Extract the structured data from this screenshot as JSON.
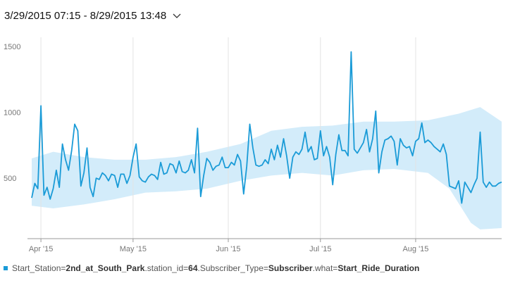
{
  "range_selector": {
    "label": "3/29/2015 07:15 - 8/29/2015 13:48"
  },
  "legend": {
    "p1": "Start_Station=",
    "station": "2nd_at_South_Park",
    "p2": ".station_id=",
    "station_id": "64",
    "p3": ".Subscriber_Type=",
    "subscriber_type": "Subscriber",
    "p4": ".what=",
    "what": "Start_Ride_Duration",
    "color": "#1a9bd7"
  },
  "chart_data": {
    "type": "line",
    "title": "",
    "xlabel": "",
    "ylabel": "",
    "x_start": "2015-03-29",
    "x_end": "2015-08-29",
    "ylim": [
      40,
      1560
    ],
    "y_ticks": [
      500,
      1000,
      1500
    ],
    "x_ticks": [
      {
        "date": "2015-04-01",
        "label": "Apr '15"
      },
      {
        "date": "2015-05-01",
        "label": "May '15"
      },
      {
        "date": "2015-06-01",
        "label": "Jun '15"
      },
      {
        "date": "2015-07-01",
        "label": "Jul '15"
      },
      {
        "date": "2015-08-01",
        "label": "Aug '15"
      }
    ],
    "grid": "vertical",
    "band_color": "#d3ecfa",
    "line_color": "#1a9bd7",
    "series": [
      {
        "values": [
          [
            "2015-03-29",
            350
          ],
          [
            "2015-03-30",
            460
          ],
          [
            "2015-03-31",
            420
          ],
          [
            "2015-04-01",
            1050
          ],
          [
            "2015-04-02",
            370
          ],
          [
            "2015-04-03",
            430
          ],
          [
            "2015-04-04",
            340
          ],
          [
            "2015-04-05",
            420
          ],
          [
            "2015-04-06",
            560
          ],
          [
            "2015-04-07",
            430
          ],
          [
            "2015-04-08",
            760
          ],
          [
            "2015-04-09",
            640
          ],
          [
            "2015-04-10",
            560
          ],
          [
            "2015-04-11",
            710
          ],
          [
            "2015-04-12",
            910
          ],
          [
            "2015-04-13",
            860
          ],
          [
            "2015-04-14",
            440
          ],
          [
            "2015-04-15",
            540
          ],
          [
            "2015-04-16",
            730
          ],
          [
            "2015-04-17",
            430
          ],
          [
            "2015-04-18",
            360
          ],
          [
            "2015-04-19",
            500
          ],
          [
            "2015-04-20",
            490
          ],
          [
            "2015-04-21",
            540
          ],
          [
            "2015-04-22",
            520
          ],
          [
            "2015-04-23",
            480
          ],
          [
            "2015-04-24",
            530
          ],
          [
            "2015-04-25",
            520
          ],
          [
            "2015-04-26",
            430
          ],
          [
            "2015-04-27",
            530
          ],
          [
            "2015-04-28",
            530
          ],
          [
            "2015-04-29",
            460
          ],
          [
            "2015-04-30",
            520
          ],
          [
            "2015-05-01",
            660
          ],
          [
            "2015-05-02",
            760
          ],
          [
            "2015-05-03",
            510
          ],
          [
            "2015-05-04",
            480
          ],
          [
            "2015-05-05",
            470
          ],
          [
            "2015-05-06",
            510
          ],
          [
            "2015-05-07",
            530
          ],
          [
            "2015-05-08",
            520
          ],
          [
            "2015-05-09",
            490
          ],
          [
            "2015-05-10",
            620
          ],
          [
            "2015-05-11",
            530
          ],
          [
            "2015-05-12",
            540
          ],
          [
            "2015-05-13",
            610
          ],
          [
            "2015-05-14",
            600
          ],
          [
            "2015-05-15",
            540
          ],
          [
            "2015-05-16",
            630
          ],
          [
            "2015-05-17",
            550
          ],
          [
            "2015-05-18",
            540
          ],
          [
            "2015-05-19",
            560
          ],
          [
            "2015-05-20",
            640
          ],
          [
            "2015-05-21",
            540
          ],
          [
            "2015-05-22",
            880
          ],
          [
            "2015-05-23",
            360
          ],
          [
            "2015-05-24",
            520
          ],
          [
            "2015-05-25",
            650
          ],
          [
            "2015-05-26",
            620
          ],
          [
            "2015-05-27",
            560
          ],
          [
            "2015-05-28",
            590
          ],
          [
            "2015-05-29",
            600
          ],
          [
            "2015-05-30",
            660
          ],
          [
            "2015-05-31",
            580
          ],
          [
            "2015-06-01",
            580
          ],
          [
            "2015-06-02",
            620
          ],
          [
            "2015-06-03",
            600
          ],
          [
            "2015-06-04",
            680
          ],
          [
            "2015-06-05",
            630
          ],
          [
            "2015-06-06",
            380
          ],
          [
            "2015-06-07",
            590
          ],
          [
            "2015-06-08",
            910
          ],
          [
            "2015-06-09",
            730
          ],
          [
            "2015-06-10",
            600
          ],
          [
            "2015-06-11",
            590
          ],
          [
            "2015-06-12",
            600
          ],
          [
            "2015-06-13",
            640
          ],
          [
            "2015-06-14",
            610
          ],
          [
            "2015-06-15",
            720
          ],
          [
            "2015-06-16",
            640
          ],
          [
            "2015-06-17",
            750
          ],
          [
            "2015-06-18",
            660
          ],
          [
            "2015-06-19",
            800
          ],
          [
            "2015-06-20",
            670
          ],
          [
            "2015-06-21",
            500
          ],
          [
            "2015-06-22",
            660
          ],
          [
            "2015-06-23",
            700
          ],
          [
            "2015-06-24",
            680
          ],
          [
            "2015-06-25",
            720
          ],
          [
            "2015-06-26",
            850
          ],
          [
            "2015-06-27",
            700
          ],
          [
            "2015-06-28",
            740
          ],
          [
            "2015-06-29",
            640
          ],
          [
            "2015-06-30",
            650
          ],
          [
            "2015-07-01",
            860
          ],
          [
            "2015-07-02",
            670
          ],
          [
            "2015-07-03",
            740
          ],
          [
            "2015-07-04",
            660
          ],
          [
            "2015-07-05",
            450
          ],
          [
            "2015-07-06",
            680
          ],
          [
            "2015-07-07",
            830
          ],
          [
            "2015-07-08",
            710
          ],
          [
            "2015-07-09",
            710
          ],
          [
            "2015-07-10",
            670
          ],
          [
            "2015-07-11",
            1460
          ],
          [
            "2015-07-12",
            720
          ],
          [
            "2015-07-13",
            690
          ],
          [
            "2015-07-14",
            730
          ],
          [
            "2015-07-15",
            770
          ],
          [
            "2015-07-16",
            870
          ],
          [
            "2015-07-17",
            700
          ],
          [
            "2015-07-18",
            800
          ],
          [
            "2015-07-19",
            1010
          ],
          [
            "2015-07-20",
            540
          ],
          [
            "2015-07-21",
            700
          ],
          [
            "2015-07-22",
            790
          ],
          [
            "2015-07-23",
            800
          ],
          [
            "2015-07-24",
            820
          ],
          [
            "2015-07-25",
            780
          ],
          [
            "2015-07-26",
            600
          ],
          [
            "2015-07-27",
            800
          ],
          [
            "2015-07-28",
            750
          ],
          [
            "2015-07-29",
            730
          ],
          [
            "2015-07-30",
            740
          ],
          [
            "2015-07-31",
            670
          ],
          [
            "2015-08-01",
            780
          ],
          [
            "2015-08-02",
            800
          ],
          [
            "2015-08-03",
            920
          ],
          [
            "2015-08-04",
            770
          ],
          [
            "2015-08-05",
            790
          ],
          [
            "2015-08-06",
            770
          ],
          [
            "2015-08-07",
            740
          ],
          [
            "2015-08-08",
            720
          ],
          [
            "2015-08-09",
            700
          ],
          [
            "2015-08-10",
            760
          ],
          [
            "2015-08-11",
            680
          ],
          [
            "2015-08-12",
            440
          ],
          [
            "2015-08-13",
            430
          ],
          [
            "2015-08-14",
            420
          ],
          [
            "2015-08-15",
            480
          ],
          [
            "2015-08-16",
            310
          ],
          [
            "2015-08-17",
            470
          ],
          [
            "2015-08-18",
            430
          ],
          [
            "2015-08-19",
            390
          ],
          [
            "2015-08-20",
            450
          ],
          [
            "2015-08-21",
            500
          ],
          [
            "2015-08-22",
            850
          ],
          [
            "2015-08-23",
            470
          ],
          [
            "2015-08-24",
            430
          ],
          [
            "2015-08-25",
            470
          ],
          [
            "2015-08-26",
            440
          ],
          [
            "2015-08-27",
            440
          ],
          [
            "2015-08-28",
            460
          ],
          [
            "2015-08-29",
            470
          ]
        ]
      }
    ],
    "band": {
      "upper": [
        [
          "2015-03-29",
          650
        ],
        [
          "2015-04-05",
          700
        ],
        [
          "2015-04-15",
          660
        ],
        [
          "2015-04-25",
          640
        ],
        [
          "2015-05-05",
          640
        ],
        [
          "2015-05-15",
          660
        ],
        [
          "2015-05-25",
          700
        ],
        [
          "2015-06-05",
          760
        ],
        [
          "2015-06-15",
          860
        ],
        [
          "2015-06-25",
          890
        ],
        [
          "2015-07-05",
          900
        ],
        [
          "2015-07-15",
          930
        ],
        [
          "2015-07-25",
          930
        ],
        [
          "2015-08-05",
          940
        ],
        [
          "2015-08-15",
          990
        ],
        [
          "2015-08-22",
          1040
        ],
        [
          "2015-08-29",
          930
        ]
      ],
      "lower": [
        [
          "2015-03-29",
          290
        ],
        [
          "2015-04-05",
          270
        ],
        [
          "2015-04-15",
          300
        ],
        [
          "2015-04-25",
          340
        ],
        [
          "2015-05-05",
          390
        ],
        [
          "2015-05-15",
          400
        ],
        [
          "2015-05-25",
          420
        ],
        [
          "2015-06-05",
          480
        ],
        [
          "2015-06-15",
          520
        ],
        [
          "2015-06-25",
          540
        ],
        [
          "2015-07-05",
          520
        ],
        [
          "2015-07-15",
          560
        ],
        [
          "2015-07-25",
          570
        ],
        [
          "2015-08-05",
          540
        ],
        [
          "2015-08-12",
          420
        ],
        [
          "2015-08-19",
          160
        ],
        [
          "2015-08-22",
          110
        ],
        [
          "2015-08-29",
          120
        ]
      ]
    }
  }
}
